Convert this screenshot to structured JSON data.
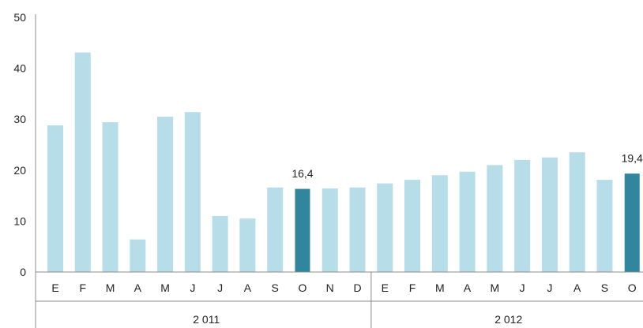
{
  "chart_data": {
    "type": "bar",
    "categories": [
      "E",
      "F",
      "M",
      "A",
      "M",
      "J",
      "J",
      "A",
      "S",
      "O",
      "N",
      "D",
      "E",
      "F",
      "M",
      "A",
      "M",
      "J",
      "J",
      "A",
      "S",
      "O"
    ],
    "values": [
      28.8,
      43.1,
      29.4,
      6.4,
      30.5,
      31.4,
      11.0,
      10.5,
      16.6,
      16.4,
      16.4,
      16.6,
      17.4,
      18.1,
      19.0,
      19.7,
      21.0,
      22.0,
      22.5,
      23.5,
      18.1,
      19.4
    ],
    "highlight_indices": [
      9,
      21
    ],
    "data_labels": [
      {
        "index": 9,
        "text": "16,4"
      },
      {
        "index": 21,
        "text": "19,4"
      }
    ],
    "groups": [
      {
        "label": "2 011",
        "start": 0,
        "end": 11
      },
      {
        "label": "2 012",
        "start": 12,
        "end": 21
      }
    ],
    "y_ticks": [
      0,
      10,
      20,
      30,
      40,
      50
    ],
    "ylim": [
      0,
      50
    ],
    "grid": false,
    "colors": {
      "bar": "#b7dde8",
      "highlight": "#31859c",
      "axis": "#8c8c8c"
    }
  }
}
